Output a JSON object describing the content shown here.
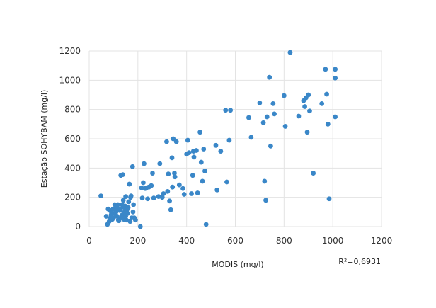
{
  "chart_data": {
    "type": "scatter",
    "title": "",
    "xlabel": "MODIS (mg/l)",
    "ylabel": "Estação SOHYBAM (mg/l)",
    "annotation": "R²=0,6931",
    "xlim": [
      0,
      1200
    ],
    "ylim": [
      0,
      1200
    ],
    "xticks": [
      0,
      200,
      400,
      600,
      800,
      1000,
      1200
    ],
    "yticks": [
      0,
      200,
      400,
      600,
      800,
      1000,
      1200
    ],
    "grid": true,
    "legend": "none",
    "marker_color": "#3a87c8",
    "grid_color": "#e3e3e3",
    "series": [
      {
        "x": [
          48,
          70,
          75,
          78,
          82,
          85,
          88,
          90,
          92,
          95,
          98,
          100,
          105,
          108,
          110,
          112,
          115,
          118,
          120,
          122,
          125,
          128,
          130,
          132,
          135,
          136,
          138,
          140,
          142,
          145,
          145,
          148,
          150,
          150,
          152,
          155,
          158,
          160,
          162,
          165,
          168,
          170,
          172,
          175,
          178,
          180,
          182,
          185,
          190,
          210,
          215,
          218,
          222,
          225,
          230,
          235,
          240,
          245,
          255,
          260,
          265,
          285,
          290,
          300,
          305,
          318,
          322,
          325,
          330,
          335,
          340,
          342,
          345,
          350,
          352,
          358,
          370,
          385,
          390,
          400,
          405,
          410,
          420,
          425,
          428,
          430,
          440,
          445,
          455,
          460,
          465,
          470,
          475,
          480,
          520,
          525,
          540,
          560,
          565,
          575,
          580,
          655,
          665,
          700,
          715,
          720,
          725,
          730,
          740,
          755,
          760,
          800,
          805,
          860,
          880,
          885,
          890,
          895,
          900,
          905,
          920,
          955,
          970,
          975,
          980,
          985,
          1010,
          1010,
          1010,
          825,
          745
        ],
        "y": [
          210,
          70,
          15,
          120,
          35,
          110,
          60,
          80,
          95,
          50,
          120,
          60,
          150,
          85,
          100,
          130,
          70,
          150,
          45,
          40,
          110,
          120,
          350,
          60,
          150,
          80,
          355,
          180,
          50,
          100,
          130,
          140,
          70,
          205,
          45,
          115,
          90,
          130,
          170,
          290,
          35,
          200,
          210,
          60,
          410,
          100,
          150,
          60,
          45,
          0,
          265,
          195,
          300,
          430,
          260,
          265,
          190,
          270,
          280,
          365,
          195,
          205,
          430,
          200,
          225,
          580,
          240,
          360,
          175,
          115,
          470,
          270,
          600,
          365,
          340,
          580,
          285,
          260,
          220,
          495,
          590,
          505,
          225,
          350,
          515,
          475,
          520,
          230,
          645,
          440,
          310,
          530,
          380,
          15,
          555,
          250,
          515,
          795,
          305,
          590,
          795,
          745,
          610,
          845,
          710,
          310,
          180,
          750,
          1020,
          840,
          770,
          895,
          685,
          755,
          860,
          820,
          880,
          645,
          900,
          790,
          365,
          840,
          1075,
          905,
          700,
          190,
          750,
          1075,
          1015,
          1190,
          550
        ]
      }
    ]
  }
}
